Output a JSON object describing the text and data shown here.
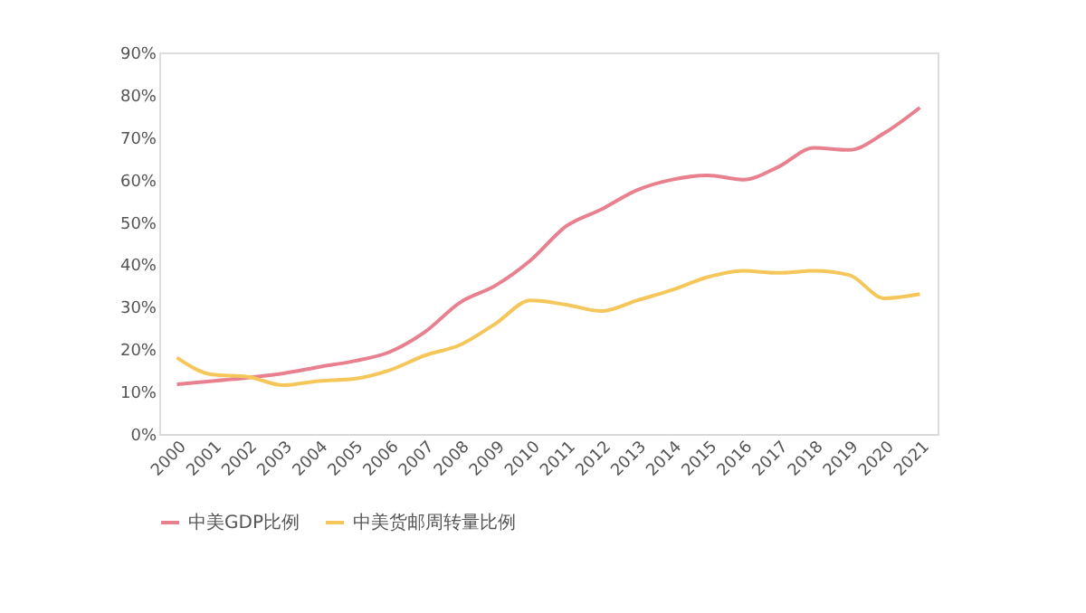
{
  "chart_data": {
    "type": "line",
    "categories": [
      "2000",
      "2001",
      "2002",
      "2003",
      "2004",
      "2005",
      "2006",
      "2007",
      "2008",
      "2009",
      "2010",
      "2011",
      "2012",
      "2013",
      "2014",
      "2015",
      "2016",
      "2017",
      "2018",
      "2019",
      "2020",
      "2021"
    ],
    "series": [
      {
        "name": "中美GDP比例",
        "color": "#e8808f",
        "values": [
          11.7,
          12.5,
          13.3,
          14.3,
          15.8,
          17.2,
          19.3,
          24,
          31,
          35,
          41,
          49,
          53,
          57.5,
          60,
          61,
          60,
          63,
          67.5,
          67,
          71,
          77
        ]
      },
      {
        "name": "中美货邮周转量比例",
        "color": "#f5c75a",
        "values": [
          18,
          14,
          13.5,
          11.5,
          12.5,
          13,
          15,
          18.5,
          21,
          26,
          31.5,
          30.5,
          29,
          31.5,
          34,
          37,
          38.5,
          38,
          38.5,
          37.5,
          32,
          33
        ]
      }
    ],
    "ylim": [
      0,
      90
    ],
    "yticks": [
      {
        "value": 0,
        "label": "0%"
      },
      {
        "value": 10,
        "label": "10%"
      },
      {
        "value": 20,
        "label": "20%"
      },
      {
        "value": 30,
        "label": "30%"
      },
      {
        "value": 40,
        "label": "40%"
      },
      {
        "value": 50,
        "label": "50%"
      },
      {
        "value": 60,
        "label": "60%"
      },
      {
        "value": 70,
        "label": "70%"
      },
      {
        "value": 80,
        "label": "80%"
      },
      {
        "value": 90,
        "label": "90%"
      }
    ],
    "grid": false,
    "legend": "bottom",
    "marker": "none",
    "line_style": "solid"
  }
}
